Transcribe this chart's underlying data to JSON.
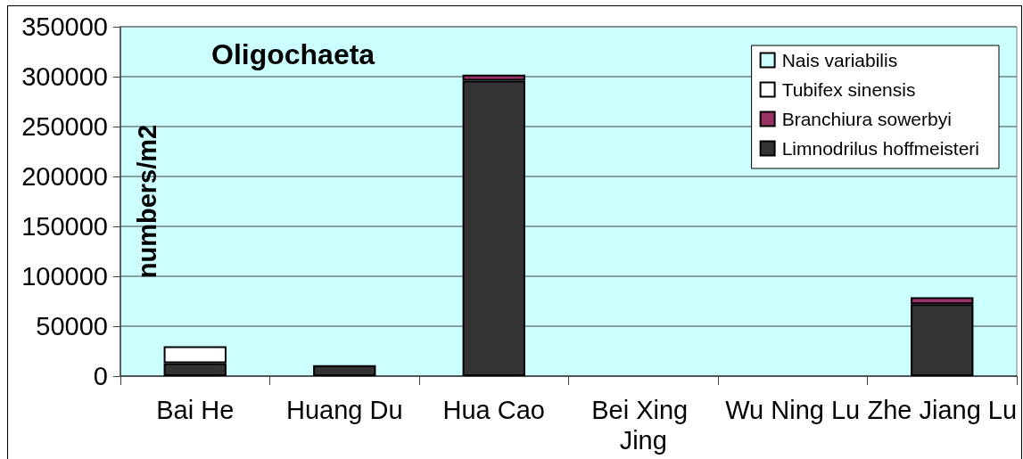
{
  "chart_data": {
    "type": "bar",
    "title": "Oligochaeta",
    "ylabel": "numbers/m2",
    "categories": [
      "Bai He",
      "Huang Du",
      "Hua Cao",
      "Bei Xing Jing",
      "Wu Ning Lu",
      "Zhe Jiang Lu"
    ],
    "series": [
      {
        "name": "Limnodrilus hoffmeisteri",
        "color": "#333333",
        "values": [
          13000,
          11000,
          296000,
          null,
          null,
          72000
        ]
      },
      {
        "name": "Branchiura sowerbyi",
        "color": "#993366",
        "values": [
          null,
          null,
          6000,
          null,
          null,
          7000
        ]
      },
      {
        "name": "Tubifex sinensis",
        "color": "#ffffff",
        "values": [
          17000,
          null,
          null,
          null,
          null,
          null
        ]
      },
      {
        "name": "Nais variabilis",
        "color": "#ccffff",
        "values": [
          null,
          null,
          null,
          null,
          null,
          null
        ]
      }
    ],
    "stacked": true,
    "ylim": [
      0,
      350000
    ],
    "yticks": [
      0,
      50000,
      100000,
      150000,
      200000,
      250000,
      300000,
      350000
    ],
    "grid": "y",
    "legend": "top right"
  }
}
